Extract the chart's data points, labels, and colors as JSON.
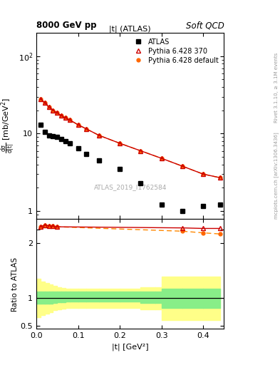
{
  "title_left": "8000 GeV pp",
  "title_right": "Soft QCD",
  "main_title": "|t| (ATLAS)",
  "watermark": "ATLAS_2019_I1762584",
  "right_label_top": "Rivet 3.1.10, ≥ 3.1M events",
  "right_label_bottom": "mcplots.cern.ch [arXiv:1306.3436]",
  "xlabel": "|t| [GeV²]",
  "ylabel_main": "dσ/d|t| [mb/GeV²]",
  "ylabel_ratio": "Ratio to ATLAS",
  "atlas_x": [
    0.01,
    0.02,
    0.03,
    0.04,
    0.05,
    0.06,
    0.07,
    0.08,
    0.1,
    0.12,
    0.15,
    0.2,
    0.25,
    0.3,
    0.35,
    0.4,
    0.44
  ],
  "atlas_y": [
    13.0,
    10.5,
    9.5,
    9.2,
    9.0,
    8.5,
    8.0,
    7.5,
    6.5,
    5.5,
    4.5,
    3.5,
    2.3,
    1.2,
    1.0,
    1.15,
    1.2
  ],
  "py370_x": [
    0.01,
    0.02,
    0.03,
    0.04,
    0.05,
    0.06,
    0.07,
    0.08,
    0.1,
    0.12,
    0.15,
    0.2,
    0.25,
    0.3,
    0.35,
    0.4,
    0.44
  ],
  "py370_y": [
    28.0,
    25.0,
    22.0,
    20.0,
    18.5,
    17.0,
    16.0,
    15.0,
    13.0,
    11.5,
    9.5,
    7.5,
    6.0,
    4.8,
    3.8,
    3.0,
    2.7
  ],
  "pydef_x": [
    0.01,
    0.02,
    0.03,
    0.04,
    0.05,
    0.06,
    0.07,
    0.08,
    0.1,
    0.12,
    0.15,
    0.2,
    0.25,
    0.3,
    0.35,
    0.4,
    0.44
  ],
  "pydef_y": [
    28.0,
    25.0,
    22.0,
    20.0,
    18.5,
    17.0,
    16.0,
    15.0,
    13.0,
    11.5,
    9.5,
    7.5,
    6.0,
    4.8,
    3.8,
    3.0,
    2.7
  ],
  "ratio_strip_x": [
    0.01,
    0.02,
    0.03,
    0.04,
    0.05,
    0.35,
    0.4,
    0.44
  ],
  "ratio_strip_py370": [
    2.35,
    2.38,
    2.37,
    2.36,
    2.35,
    2.33,
    2.32,
    2.32
  ],
  "ratio_strip_pydef": [
    2.35,
    2.38,
    2.37,
    2.36,
    2.35,
    2.27,
    2.24,
    2.22
  ],
  "band_green_edges": [
    0.0,
    0.01,
    0.02,
    0.03,
    0.04,
    0.05,
    0.06,
    0.07,
    0.08,
    0.1,
    0.12,
    0.15,
    0.2,
    0.25,
    0.285,
    0.3,
    0.35,
    0.4,
    0.44
  ],
  "band_green_ylo": [
    0.9,
    0.9,
    0.9,
    0.9,
    0.92,
    0.93,
    0.93,
    0.94,
    0.94,
    0.94,
    0.94,
    0.94,
    0.94,
    0.92,
    0.92,
    0.82,
    0.82,
    0.82,
    0.82
  ],
  "band_green_yhi": [
    1.12,
    1.12,
    1.12,
    1.12,
    1.12,
    1.12,
    1.12,
    1.12,
    1.12,
    1.12,
    1.12,
    1.12,
    1.12,
    1.12,
    1.12,
    1.18,
    1.18,
    1.18,
    1.18
  ],
  "band_yellow_edges": [
    0.0,
    0.01,
    0.02,
    0.03,
    0.04,
    0.05,
    0.06,
    0.07,
    0.08,
    0.1,
    0.12,
    0.15,
    0.2,
    0.25,
    0.285,
    0.3,
    0.35,
    0.4,
    0.44
  ],
  "band_yellow_ylo": [
    0.65,
    0.7,
    0.72,
    0.75,
    0.78,
    0.8,
    0.81,
    0.82,
    0.82,
    0.82,
    0.82,
    0.82,
    0.82,
    0.8,
    0.8,
    0.6,
    0.6,
    0.6,
    0.6
  ],
  "band_yellow_yhi": [
    1.35,
    1.3,
    1.28,
    1.25,
    1.22,
    1.2,
    1.19,
    1.18,
    1.18,
    1.18,
    1.18,
    1.18,
    1.18,
    1.2,
    1.2,
    1.4,
    1.4,
    1.4,
    1.4
  ],
  "ylim_main": [
    0.8,
    200
  ],
  "ylim_strip": [
    2.1,
    2.5
  ],
  "ylim_ratio": [
    0.45,
    2.05
  ],
  "xlim": [
    0.0,
    0.45
  ],
  "color_atlas": "#000000",
  "color_py370_line": "#cc0000",
  "color_py370_marker": "#cc0000",
  "color_pydef_line": "#ff8800",
  "color_pydef_marker": "#ff6600",
  "color_green_band": "#88ee88",
  "color_yellow_band": "#ffff88",
  "fontsize_title": 8.5,
  "fontsize_axis": 8,
  "fontsize_legend": 7,
  "fontsize_watermark": 6.5
}
